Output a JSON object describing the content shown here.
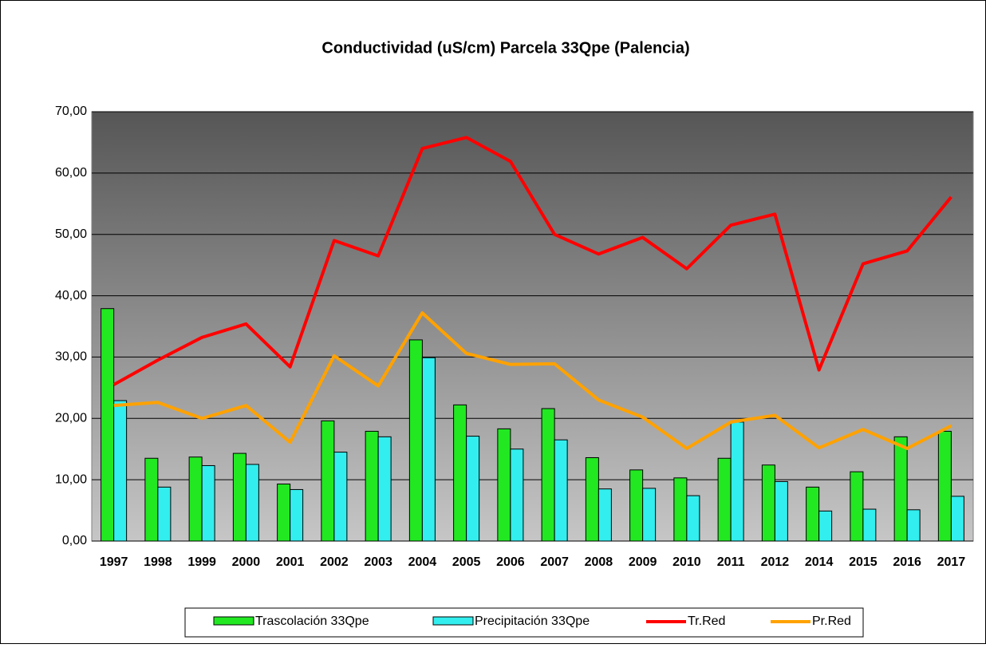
{
  "chart_data": {
    "type": "bar-line",
    "title": "Conductividad (uS/cm) Parcela 33Qpe (Palencia)",
    "categories": [
      "1997",
      "1998",
      "1999",
      "2000",
      "2001",
      "2002",
      "2003",
      "2004",
      "2005",
      "2006",
      "2007",
      "2008",
      "2009",
      "2010",
      "2011",
      "2012",
      "2014",
      "2015",
      "2016",
      "2017"
    ],
    "series": [
      {
        "name": "Trascolación  33Qpe",
        "type": "bar",
        "color": "#22e822",
        "values": [
          37.9,
          13.5,
          13.7,
          14.3,
          9.3,
          19.6,
          17.9,
          32.8,
          22.2,
          18.3,
          21.6,
          13.6,
          11.6,
          10.3,
          13.5,
          12.4,
          8.8,
          11.3,
          17.0,
          17.9
        ]
      },
      {
        "name": "Precipitación 33Qpe",
        "type": "bar",
        "color": "#33eeee",
        "values": [
          22.9,
          8.8,
          12.3,
          12.5,
          8.4,
          14.5,
          17.0,
          29.9,
          17.1,
          15.0,
          16.5,
          8.5,
          8.6,
          7.4,
          19.4,
          9.7,
          4.9,
          5.2,
          5.1,
          7.3
        ]
      },
      {
        "name": "Tr.Red",
        "type": "line",
        "color": "#ff0000",
        "values": [
          25.5,
          29.5,
          33.2,
          35.4,
          28.4,
          49.0,
          46.5,
          64.0,
          65.8,
          61.9,
          50.0,
          46.8,
          49.5,
          44.4,
          51.5,
          53.3,
          27.9,
          45.2,
          47.3,
          56.1
        ]
      },
      {
        "name": "Pr.Red",
        "type": "line",
        "color": "#ffa200",
        "values": [
          22.1,
          22.6,
          20.0,
          22.1,
          16.1,
          30.2,
          25.3,
          37.2,
          30.6,
          28.8,
          28.9,
          23.0,
          20.2,
          15.1,
          19.4,
          20.5,
          15.2,
          18.2,
          15.1,
          18.8
        ]
      }
    ],
    "ylim": [
      0,
      70
    ],
    "yticks": [
      {
        "value": 0,
        "label": "0,00"
      },
      {
        "value": 10,
        "label": "10,00"
      },
      {
        "value": 20,
        "label": "20,00"
      },
      {
        "value": 30,
        "label": "30,00"
      },
      {
        "value": 40,
        "label": "40,00"
      },
      {
        "value": 50,
        "label": "50,00"
      },
      {
        "value": 60,
        "label": "60,00"
      },
      {
        "value": 70,
        "label": "70,00"
      }
    ],
    "grid": true
  }
}
